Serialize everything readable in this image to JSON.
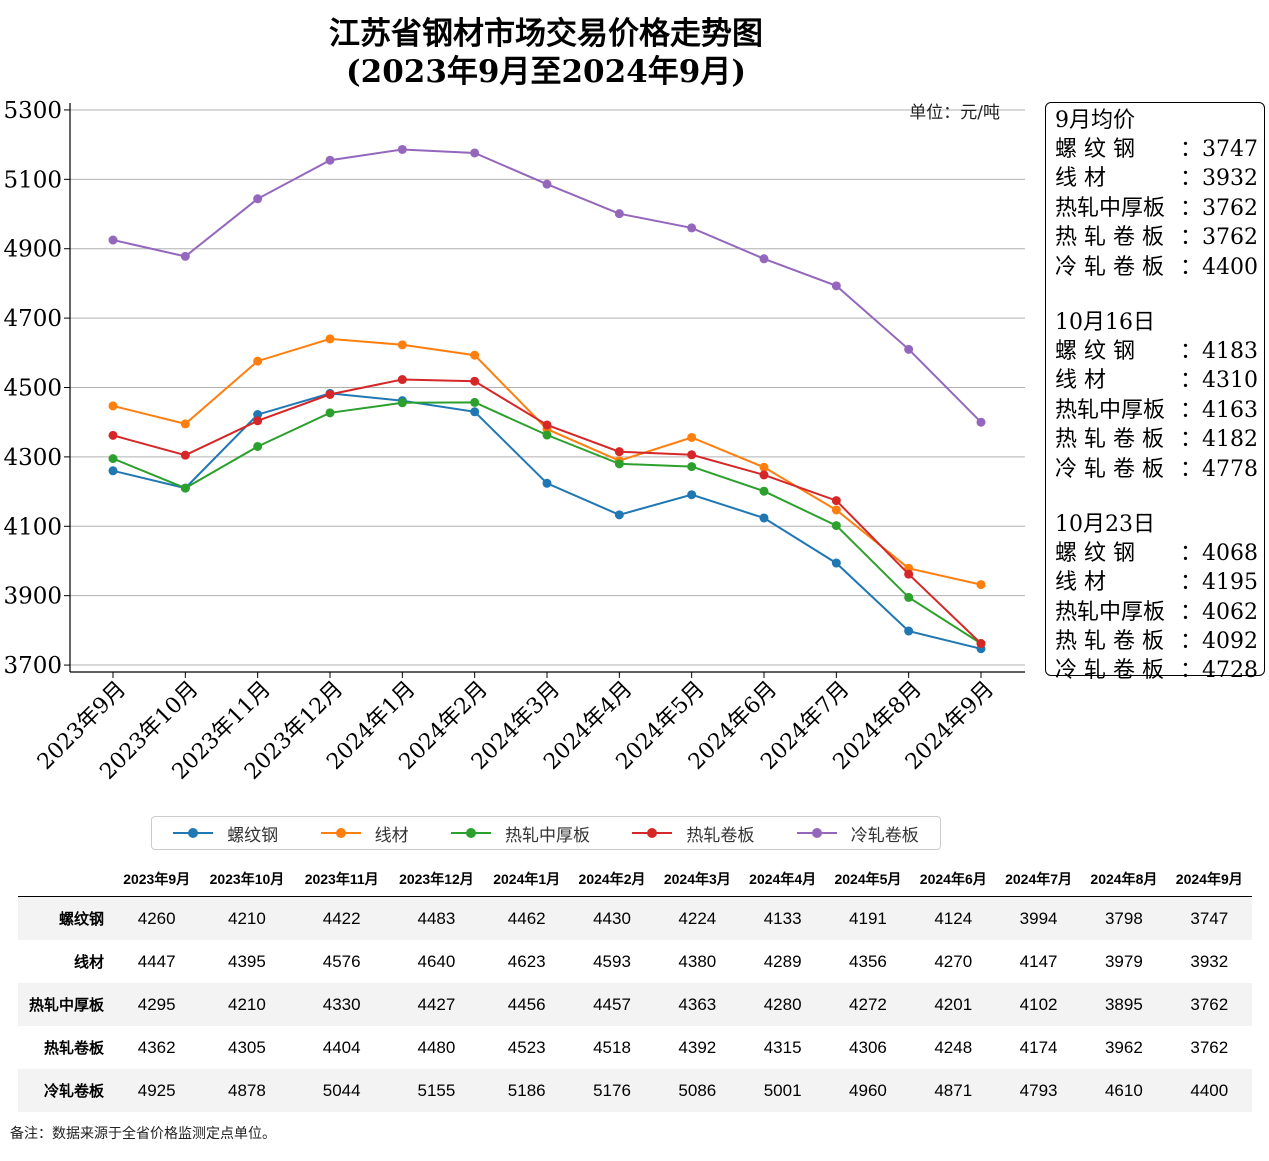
{
  "title_line1": "江苏省钢材市场交易价格走势图",
  "title_line2": "(2023年9月至2024年9月)",
  "unit": "单位：元/吨",
  "chart_data": {
    "type": "line",
    "title": "江苏省钢材市场交易价格走势图 (2023年9月至2024年9月)",
    "categories": [
      "2023年9月",
      "2023年10月",
      "2023年11月",
      "2023年12月",
      "2024年1月",
      "2024年2月",
      "2024年3月",
      "2024年4月",
      "2024年5月",
      "2024年6月",
      "2024年7月",
      "2024年8月",
      "2024年9月"
    ],
    "ylim": [
      3680,
      5320
    ],
    "yticks": [
      3700,
      3900,
      4100,
      4300,
      4500,
      4700,
      4900,
      5100,
      5300
    ],
    "grid": true,
    "legend_position": "bottom",
    "series": [
      {
        "name": "螺纹钢",
        "color": "#1f77b4",
        "values": [
          4260,
          4210,
          4422,
          4483,
          4462,
          4430,
          4224,
          4133,
          4191,
          4124,
          3994,
          3798,
          3747
        ]
      },
      {
        "name": "线材",
        "color": "#ff7f0e",
        "values": [
          4447,
          4395,
          4576,
          4640,
          4623,
          4593,
          4380,
          4289,
          4356,
          4270,
          4147,
          3979,
          3932
        ]
      },
      {
        "name": "热轧中厚板",
        "color": "#2ca02c",
        "values": [
          4295,
          4210,
          4330,
          4427,
          4456,
          4457,
          4363,
          4280,
          4272,
          4201,
          4102,
          3895,
          3762
        ]
      },
      {
        "name": "热轧卷板",
        "color": "#d62728",
        "values": [
          4362,
          4305,
          4404,
          4480,
          4523,
          4518,
          4392,
          4315,
          4306,
          4248,
          4174,
          3962,
          3762
        ]
      },
      {
        "name": "冷轧卷板",
        "color": "#9467bd",
        "values": [
          4925,
          4878,
          5044,
          5155,
          5186,
          5176,
          5086,
          5001,
          4960,
          4871,
          4793,
          4610,
          4400
        ]
      }
    ]
  },
  "info_box": {
    "sections": [
      {
        "header": "9月均价",
        "items": [
          {
            "label": "螺 纹 钢",
            "value": "3747"
          },
          {
            "label": "线 材",
            "value": "3932"
          },
          {
            "label": "热轧中厚板",
            "value": "3762"
          },
          {
            "label": "热 轧 卷 板",
            "value": "3762"
          },
          {
            "label": "冷 轧 卷 板",
            "value": "4400"
          }
        ]
      },
      {
        "header": "10月16日",
        "items": [
          {
            "label": "螺 纹 钢",
            "value": "4183"
          },
          {
            "label": "线 材",
            "value": "4310"
          },
          {
            "label": "热轧中厚板",
            "value": "4163"
          },
          {
            "label": "热 轧 卷 板",
            "value": "4182"
          },
          {
            "label": "冷 轧 卷 板",
            "value": "4778"
          }
        ]
      },
      {
        "header": "10月23日",
        "items": [
          {
            "label": "螺 纹 钢",
            "value": "4068"
          },
          {
            "label": "线 材",
            "value": "4195"
          },
          {
            "label": "热轧中厚板",
            "value": "4062"
          },
          {
            "label": "热 轧 卷 板",
            "value": "4092"
          },
          {
            "label": "冷 轧 卷 板",
            "value": "4728"
          }
        ]
      }
    ]
  },
  "note": "备注：数据来源于全省价格监测定点单位。"
}
